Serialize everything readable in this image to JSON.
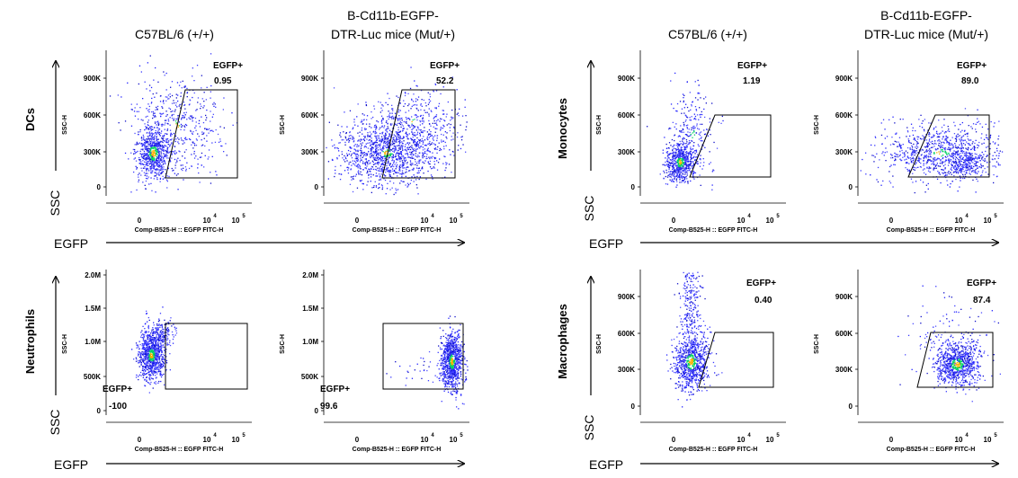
{
  "chart_data": {
    "type": "scatter",
    "column_headers": {
      "wildtype": [
        "C57BL/6 (+/+)"
      ],
      "mutant": [
        "B-Cd11b-EGFP-",
        "DTR-Luc mice (Mut/+)"
      ]
    },
    "axis_labels": {
      "x": "Comp-B525-H :: EGFP FITC-H",
      "y": "SSC-H",
      "big_x": "EGFP",
      "big_y": "SSC"
    },
    "x_ticks": [
      "0",
      "10",
      "4",
      "10",
      "5"
    ],
    "gate_name": "EGFP+",
    "colors": {
      "dots_low": "#1a1aff",
      "dots_mid": "#00d060",
      "dots_high": "#ffb000",
      "gate": "#000000"
    },
    "panels": [
      {
        "cell_type": "DCs",
        "y_ticks": [
          "900K",
          "600K",
          "300K",
          "0"
        ],
        "y_values": [
          900000,
          600000,
          300000,
          0
        ],
        "wildtype_egfp_pct": "0.95",
        "mutant_egfp_pct": "52.2"
      },
      {
        "cell_type": "Neutrophils",
        "y_ticks": [
          "2.0M",
          "1.5M",
          "1.0M",
          "500K",
          "0"
        ],
        "y_values": [
          2000000,
          1500000,
          1000000,
          500000,
          0
        ],
        "wildtype_egfp_pct": "-100",
        "mutant_egfp_pct": "99.6"
      },
      {
        "cell_type": "Monocytes",
        "y_ticks": [
          "900K",
          "600K",
          "300K",
          "0"
        ],
        "y_values": [
          900000,
          600000,
          300000,
          0
        ],
        "wildtype_egfp_pct": "1.19",
        "mutant_egfp_pct": "89.0"
      },
      {
        "cell_type": "Macrophages",
        "y_ticks": [
          "900K",
          "600K",
          "300K",
          "0"
        ],
        "y_values": [
          900000,
          600000,
          300000,
          0
        ],
        "wildtype_egfp_pct": "0.40",
        "mutant_egfp_pct": "87.4"
      }
    ]
  }
}
